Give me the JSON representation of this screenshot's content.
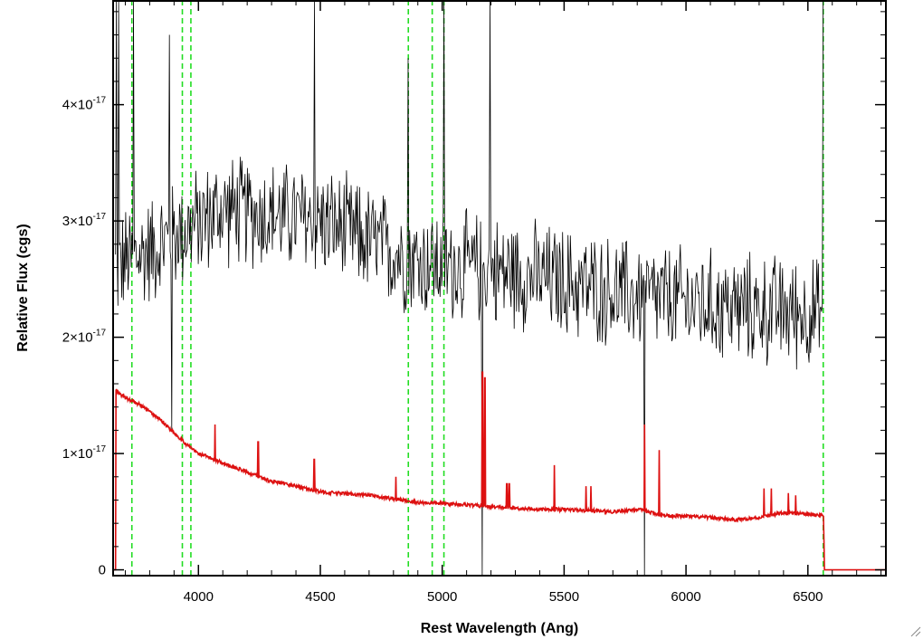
{
  "chart_data": {
    "type": "line",
    "title": "",
    "xlabel": "Rest Wavelength (Ang)",
    "ylabel": "Relative Flux (cgs)",
    "xlim": [
      3650,
      6820
    ],
    "ylim": [
      -0.05,
      4.9
    ],
    "y_unit_exponent": "-17",
    "x_ticks": [
      4000,
      4500,
      5000,
      5500,
      6000,
      6500
    ],
    "y_ticks": [
      {
        "value": 0,
        "mantissa": "0",
        "exponent": ""
      },
      {
        "value": 1,
        "mantissa": "1×10",
        "exponent": "-17"
      },
      {
        "value": 2,
        "mantissa": "2×10",
        "exponent": "-17"
      },
      {
        "value": 3,
        "mantissa": "3×10",
        "exponent": "-17"
      },
      {
        "value": 4,
        "mantissa": "4×10",
        "exponent": "-17"
      }
    ],
    "grid": false,
    "legend": "none",
    "reference_lines": {
      "style": "dashed",
      "color": "#22dd22",
      "x": [
        3727,
        3934,
        3969,
        4861,
        4959,
        5007,
        6563
      ]
    },
    "series": [
      {
        "role": "observed",
        "color": "#000000",
        "x_range": [
          3660,
          6565
        ],
        "continuum": [
          [
            3660,
            2.6
          ],
          [
            3800,
            2.75
          ],
          [
            4100,
            3.1
          ],
          [
            4500,
            3.0
          ],
          [
            4900,
            2.65
          ],
          [
            5300,
            2.55
          ],
          [
            5800,
            2.35
          ],
          [
            6200,
            2.25
          ],
          [
            6565,
            2.2
          ]
        ],
        "scatter_amplitude": 0.55,
        "spikes": [
          {
            "x": 3662,
            "y": 4.9
          },
          {
            "x": 3672,
            "y": 4.9
          },
          {
            "x": 3735,
            "y": 4.9
          },
          {
            "x": 3880,
            "y": 4.6
          },
          {
            "x": 3890,
            "y": 1.2
          },
          {
            "x": 4475,
            "y": 4.9
          },
          {
            "x": 4861,
            "y": 4.4
          },
          {
            "x": 5007,
            "y": 4.9
          },
          {
            "x": 5165,
            "y": -0.05
          },
          {
            "x": 5195,
            "y": 4.9
          },
          {
            "x": 5830,
            "y": -0.05
          },
          {
            "x": 6563,
            "y": 4.9
          }
        ]
      },
      {
        "role": "model",
        "color": "#dd1111",
        "points": [
          [
            3650,
            0
          ],
          [
            3660,
            0
          ],
          [
            3662,
            1.55
          ],
          [
            3670,
            1.52
          ],
          [
            3700,
            1.48
          ],
          [
            3760,
            1.42
          ],
          [
            3800,
            1.36
          ],
          [
            3850,
            1.28
          ],
          [
            3900,
            1.18
          ],
          [
            3950,
            1.08
          ],
          [
            4000,
            1.0
          ],
          [
            4100,
            0.92
          ],
          [
            4200,
            0.84
          ],
          [
            4300,
            0.76
          ],
          [
            4400,
            0.72
          ],
          [
            4500,
            0.67
          ],
          [
            4700,
            0.64
          ],
          [
            4900,
            0.58
          ],
          [
            5100,
            0.56
          ],
          [
            5200,
            0.54
          ],
          [
            5400,
            0.52
          ],
          [
            5500,
            0.52
          ],
          [
            5700,
            0.5
          ],
          [
            5800,
            0.52
          ],
          [
            5900,
            0.47
          ],
          [
            6100,
            0.45
          ],
          [
            6200,
            0.43
          ],
          [
            6300,
            0.45
          ],
          [
            6400,
            0.49
          ],
          [
            6565,
            0.47
          ],
          [
            6567,
            0
          ],
          [
            6820,
            0
          ]
        ],
        "emission_lines": [
          {
            "x": 4068,
            "y": 1.25
          },
          {
            "x": 4245,
            "y": 1.1
          },
          {
            "x": 4475,
            "y": 0.95
          },
          {
            "x": 4810,
            "y": 0.8
          },
          {
            "x": 5165,
            "y": 1.7
          },
          {
            "x": 5175,
            "y": 1.65
          },
          {
            "x": 5265,
            "y": 0.74
          },
          {
            "x": 5275,
            "y": 0.74
          },
          {
            "x": 5460,
            "y": 0.9
          },
          {
            "x": 5590,
            "y": 0.72
          },
          {
            "x": 5610,
            "y": 0.72
          },
          {
            "x": 5830,
            "y": 1.25
          },
          {
            "x": 5890,
            "y": 1.03
          },
          {
            "x": 6320,
            "y": 0.7
          },
          {
            "x": 6350,
            "y": 0.7
          },
          {
            "x": 6420,
            "y": 0.66
          },
          {
            "x": 6450,
            "y": 0.64
          }
        ]
      }
    ]
  }
}
